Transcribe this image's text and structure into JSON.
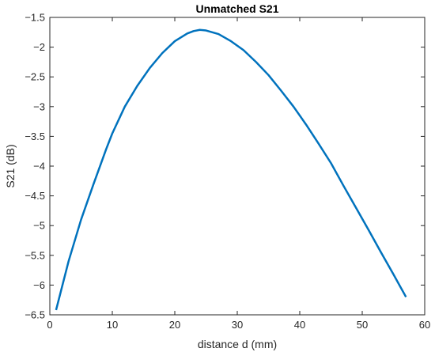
{
  "chart_data": {
    "type": "line",
    "title": "Unmatched S21",
    "xlabel": "distance d (mm)",
    "ylabel": "S21 (dB)",
    "xlim": [
      0,
      60
    ],
    "ylim": [
      -6.5,
      -1.5
    ],
    "xticks": [
      0,
      10,
      20,
      30,
      40,
      50,
      60
    ],
    "yticks": [
      -1.5,
      -2,
      -2.5,
      -3,
      -3.5,
      -4,
      -4.5,
      -5,
      -5.5,
      -6,
      -6.5
    ],
    "xtick_labels": [
      "0",
      "10",
      "20",
      "30",
      "40",
      "50",
      "60"
    ],
    "ytick_labels": [
      "−1.5",
      "−2",
      "−2.5",
      "−3",
      "−3.5",
      "−4",
      "−4.5",
      "−5",
      "−5.5",
      "−6",
      "−6.5"
    ],
    "grid": false,
    "series": [
      {
        "color": "#0072BD",
        "x": [
          1,
          3,
          5,
          7,
          9,
          10,
          12,
          14,
          16,
          18,
          20,
          22,
          23,
          24,
          25,
          27,
          29,
          31,
          33,
          35,
          37,
          39,
          41,
          43,
          45,
          47,
          49,
          51,
          53,
          55,
          57
        ],
        "y": [
          -6.42,
          -5.6,
          -4.9,
          -4.3,
          -3.72,
          -3.45,
          -3.0,
          -2.65,
          -2.35,
          -2.1,
          -1.9,
          -1.77,
          -1.73,
          -1.71,
          -1.72,
          -1.78,
          -1.9,
          -2.05,
          -2.25,
          -2.47,
          -2.73,
          -3.0,
          -3.3,
          -3.62,
          -3.95,
          -4.33,
          -4.7,
          -5.07,
          -5.45,
          -5.82,
          -6.2
        ]
      }
    ]
  }
}
